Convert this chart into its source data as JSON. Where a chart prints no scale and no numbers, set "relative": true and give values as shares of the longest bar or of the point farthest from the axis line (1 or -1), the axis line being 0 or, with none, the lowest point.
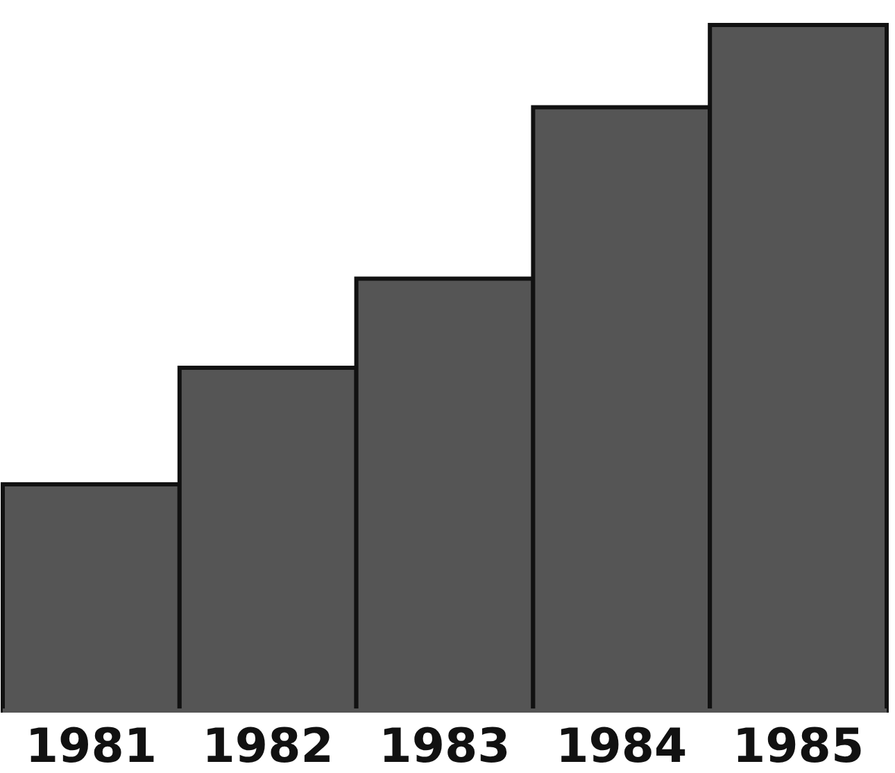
{
  "chart_data": {
    "type": "bar",
    "categories": [
      "1981",
      "1982",
      "1983",
      "1984",
      "1985"
    ],
    "values": [
      0.33,
      0.5,
      0.63,
      0.88,
      1
    ],
    "color": "#555555",
    "relative": true
  }
}
